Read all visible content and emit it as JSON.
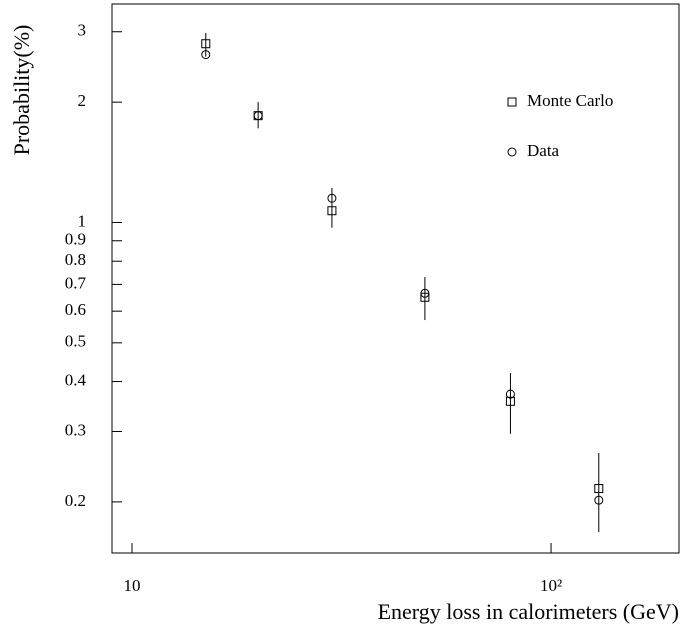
{
  "chart_data": {
    "type": "scatter",
    "x_label": "Energy loss in calorimeters (GeV)",
    "y_label": "Probability(%)",
    "x_log": true,
    "y_log": true,
    "xlim": [
      8.96,
      202
    ],
    "ylim": [
      0.149,
      3.52
    ],
    "xticks": [
      10,
      {
        "value": 100,
        "label": "10²"
      }
    ],
    "yticks": [
      0.2,
      0.3,
      0.4,
      0.5,
      0.6,
      0.7,
      0.8,
      0.9,
      1,
      2,
      3
    ],
    "x": [
      15,
      20,
      30,
      50,
      80,
      130
    ],
    "series": [
      {
        "name": "Monte Carlo",
        "marker": "square",
        "color": "#000000",
        "values": [
          2.8,
          1.85,
          1.07,
          0.65,
          0.357,
          0.216
        ]
      },
      {
        "name": "Data",
        "marker": "circle",
        "color": "#000000",
        "values": [
          2.63,
          1.85,
          1.15,
          0.665,
          0.372,
          0.202
        ]
      }
    ],
    "error_bars": {
      "high": [
        2.98,
        2.0,
        1.22,
        0.73,
        0.42,
        0.265
      ],
      "low": [
        2.6,
        1.72,
        0.97,
        0.57,
        0.296,
        0.168
      ]
    },
    "legend": "upper right"
  }
}
